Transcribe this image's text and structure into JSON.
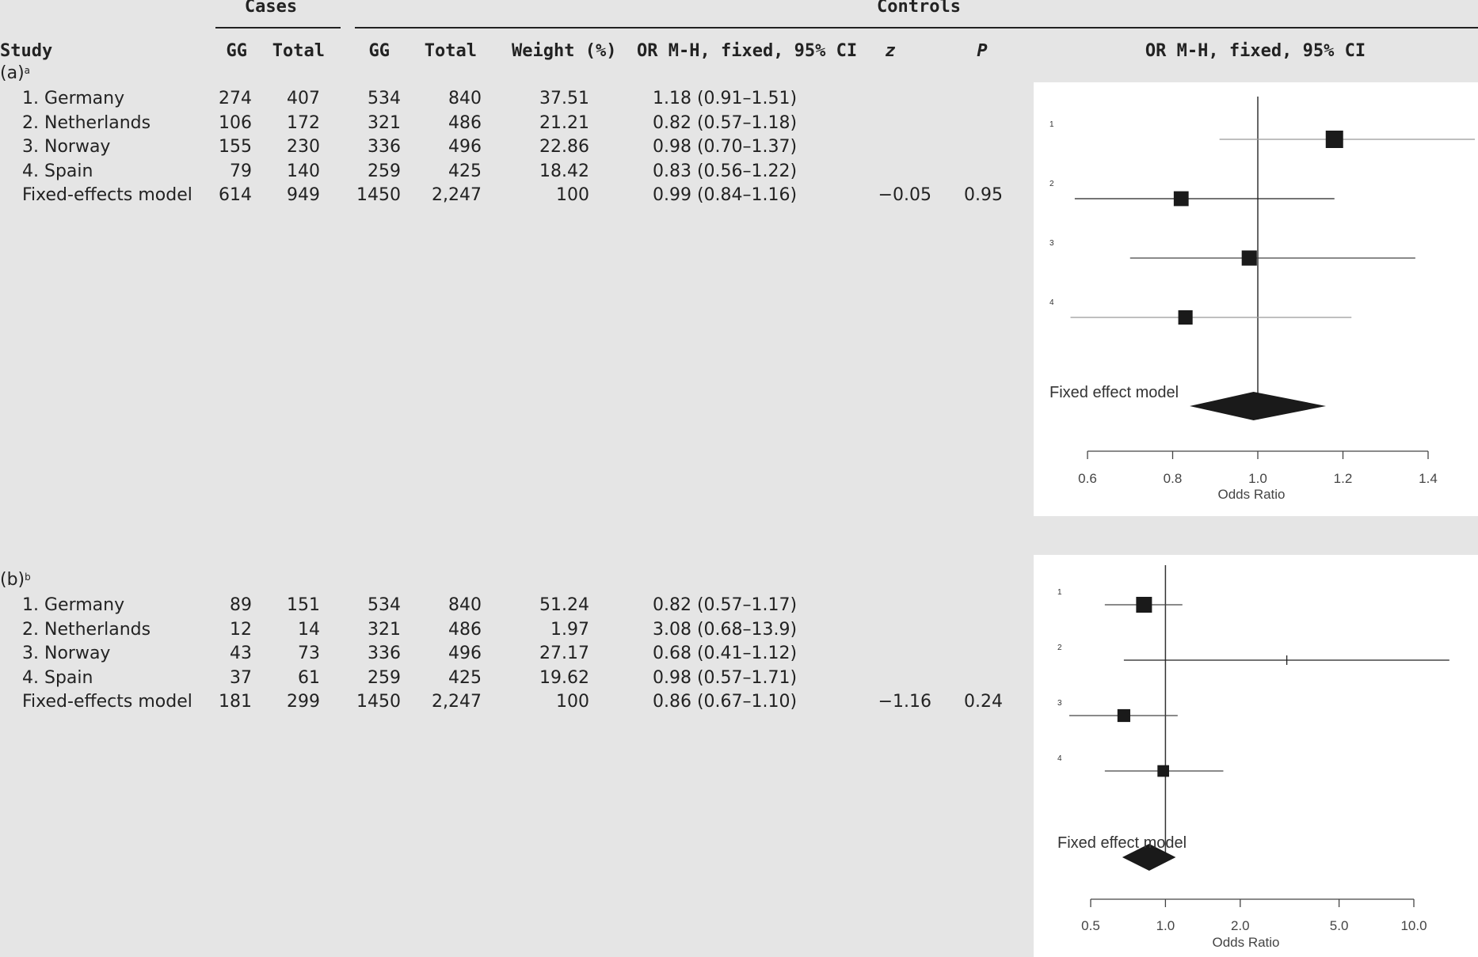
{
  "header": {
    "group_cases": "Cases",
    "group_controls": "Controls",
    "columns": {
      "study": "Study",
      "cases_gg": "GG",
      "cases_total": "Total",
      "controls_gg": "GG",
      "controls_total": "Total",
      "weight": "Weight (%)",
      "or": "OR M-H, fixed, 95% CI",
      "z": "z",
      "p": "P",
      "plot": "OR M-H, fixed, 95% CI"
    }
  },
  "panels": [
    {
      "label": "(a)",
      "sup": "a",
      "rows": [
        {
          "study": "1. Germany",
          "cases_gg": "274",
          "cases_total": "407",
          "controls_gg": "534",
          "controls_total": "840",
          "weight": "37.51",
          "or": "1.18 (0.91–1.51)",
          "z": "",
          "p": ""
        },
        {
          "study": "2. Netherlands",
          "cases_gg": "106",
          "cases_total": "172",
          "controls_gg": "321",
          "controls_total": "486",
          "weight": "21.21",
          "or": "0.82 (0.57–1.18)",
          "z": "",
          "p": ""
        },
        {
          "study": "3. Norway",
          "cases_gg": "155",
          "cases_total": "230",
          "controls_gg": "336",
          "controls_total": "496",
          "weight": "22.86",
          "or": "0.98 (0.70–1.37)",
          "z": "",
          "p": ""
        },
        {
          "study": "4. Spain",
          "cases_gg": "79",
          "cases_total": "140",
          "controls_gg": "259",
          "controls_total": "425",
          "weight": "18.42",
          "or": "0.83 (0.56–1.22)",
          "z": "",
          "p": ""
        },
        {
          "study": "Fixed-effects model",
          "cases_gg": "614",
          "cases_total": "949",
          "controls_gg": "1450",
          "controls_total": "2,247",
          "weight": "100",
          "or": "0.99 (0.84–1.16)",
          "z": "−0.05",
          "p": "0.95"
        }
      ]
    },
    {
      "label": "(b)",
      "sup": "b",
      "rows": [
        {
          "study": "1. Germany",
          "cases_gg": "89",
          "cases_total": "151",
          "controls_gg": "534",
          "controls_total": "840",
          "weight": "51.24",
          "or": "0.82 (0.57–1.17)",
          "z": "",
          "p": ""
        },
        {
          "study": "2. Netherlands",
          "cases_gg": "12",
          "cases_total": "14",
          "controls_gg": "321",
          "controls_total": "486",
          "weight": "1.97",
          "or": "3.08 (0.68–13.9)",
          "z": "",
          "p": ""
        },
        {
          "study": "3. Norway",
          "cases_gg": "43",
          "cases_total": "73",
          "controls_gg": "336",
          "controls_total": "496",
          "weight": "27.17",
          "or": "0.68 (0.41–1.12)",
          "z": "",
          "p": ""
        },
        {
          "study": "4. Spain",
          "cases_gg": "37",
          "cases_total": "61",
          "controls_gg": "259",
          "controls_total": "425",
          "weight": "19.62",
          "or": "0.98 (0.57–1.71)",
          "z": "",
          "p": ""
        },
        {
          "study": "Fixed-effects model",
          "cases_gg": "181",
          "cases_total": "299",
          "controls_gg": "1450",
          "controls_total": "2,247",
          "weight": "100",
          "or": "0.86 (0.67–1.10)",
          "z": "−1.16",
          "p": "0.24"
        }
      ]
    }
  ],
  "chart_data": [
    {
      "type": "scatter",
      "subtype": "forest-plot",
      "xlabel": "Odds Ratio",
      "xscale": "linear",
      "xlim": [
        0.6,
        1.4
      ],
      "xticks": [
        0.6,
        0.8,
        1.0,
        1.2,
        1.4
      ],
      "xtick_labels": [
        "0.6",
        "0.8",
        "1.0",
        "1.2",
        "1.4"
      ],
      "reference_line": 1.0,
      "studies": [
        {
          "label": "1",
          "or": 1.18,
          "lower": 0.91,
          "upper": 1.51,
          "weight": 37.51
        },
        {
          "label": "2",
          "or": 0.82,
          "lower": 0.57,
          "upper": 1.18,
          "weight": 21.21
        },
        {
          "label": "3",
          "or": 0.98,
          "lower": 0.7,
          "upper": 1.37,
          "weight": 22.86
        },
        {
          "label": "4",
          "or": 0.83,
          "lower": 0.56,
          "upper": 1.22,
          "weight": 18.42
        }
      ],
      "summary": {
        "label": "Fixed effect model",
        "or": 0.99,
        "lower": 0.84,
        "upper": 1.16
      }
    },
    {
      "type": "scatter",
      "subtype": "forest-plot",
      "xlabel": "Odds Ratio",
      "xscale": "log",
      "xlim": [
        0.5,
        10.0
      ],
      "xticks": [
        0.5,
        1.0,
        2.0,
        5.0,
        10.0
      ],
      "xtick_labels": [
        "0.5",
        "1.0",
        "2.0",
        "5.0",
        "10.0"
      ],
      "reference_line": 1.0,
      "studies": [
        {
          "label": "1",
          "or": 0.82,
          "lower": 0.57,
          "upper": 1.17,
          "weight": 51.24
        },
        {
          "label": "2",
          "or": 3.08,
          "lower": 0.68,
          "upper": 13.9,
          "weight": 1.97
        },
        {
          "label": "3",
          "or": 0.68,
          "lower": 0.41,
          "upper": 1.12,
          "weight": 27.17
        },
        {
          "label": "4",
          "or": 0.98,
          "lower": 0.57,
          "upper": 1.71,
          "weight": 19.62
        }
      ],
      "summary": {
        "label": "Fixed effect model",
        "or": 0.86,
        "lower": 0.67,
        "upper": 1.1
      }
    }
  ]
}
